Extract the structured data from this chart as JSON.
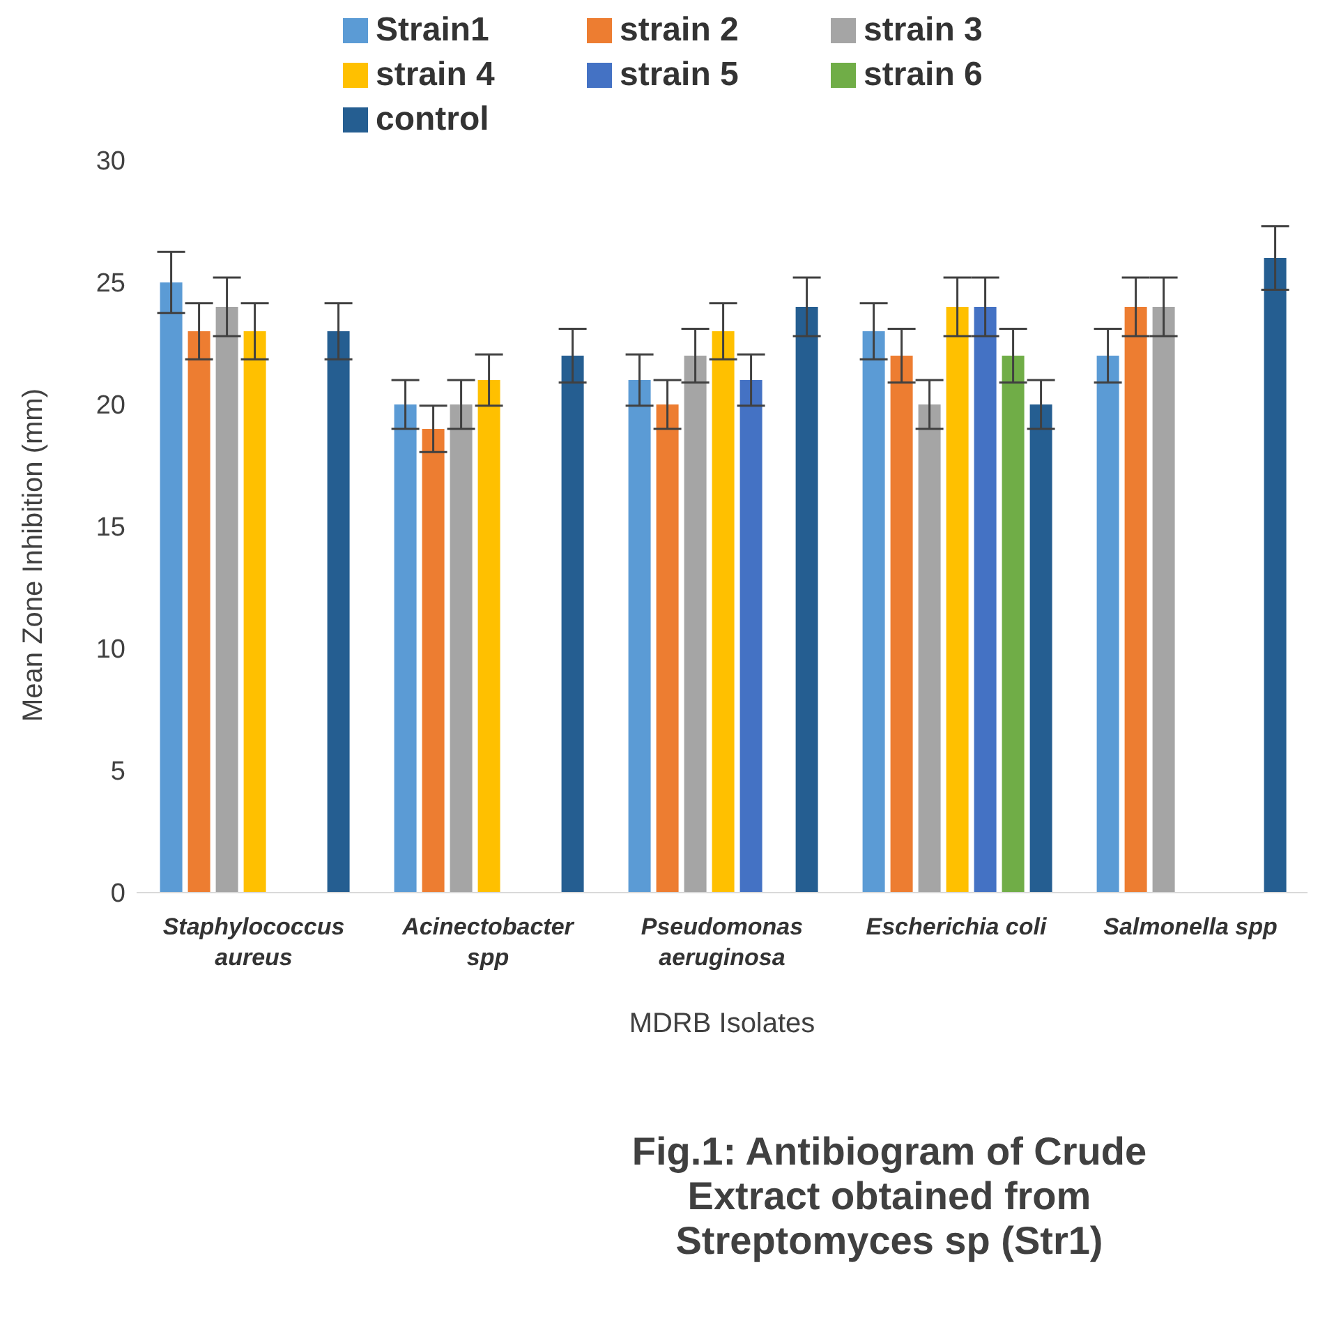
{
  "chart_data": {
    "type": "bar",
    "title": "Fig.1: Antibiogram of Crude Extract obtained from Streptomyces sp (Str1)",
    "xlabel": "MDRB Isolates",
    "ylabel": "Mean Zone Inhibition (mm)",
    "categories": [
      "Staphylococcus aureus",
      "Acinectobacter spp",
      "Pseudomonas aeruginosa",
      "Escherichia coli",
      "Salmonella spp"
    ],
    "series": [
      {
        "name": "Strain1",
        "color": "#5b9bd5",
        "values": [
          25,
          20,
          21,
          23,
          22
        ],
        "errors": [
          1.25,
          1,
          1.05,
          1.15,
          1.1
        ]
      },
      {
        "name": "strain 2",
        "color": "#ed7d31",
        "values": [
          23,
          19,
          20,
          22,
          24
        ],
        "errors": [
          1.15,
          0.95,
          1,
          1.1,
          1.2
        ]
      },
      {
        "name": "strain 3",
        "color": "#a5a5a5",
        "values": [
          24,
          20,
          22,
          20,
          24
        ],
        "errors": [
          1.2,
          1,
          1.1,
          1,
          1.2
        ]
      },
      {
        "name": "strain 4",
        "color": "#ffc000",
        "values": [
          23,
          21,
          23,
          24,
          null
        ],
        "errors": [
          1.15,
          1.05,
          1.15,
          1.2,
          null
        ]
      },
      {
        "name": "strain 5",
        "color": "#4472c4",
        "values": [
          null,
          null,
          21,
          24,
          null
        ],
        "errors": [
          null,
          null,
          1.05,
          1.2,
          null
        ]
      },
      {
        "name": "strain 6",
        "color": "#70ad47",
        "values": [
          null,
          null,
          null,
          22,
          null
        ],
        "errors": [
          null,
          null,
          null,
          1.1,
          null
        ]
      },
      {
        "name": "control",
        "color": "#255e91",
        "values": [
          23,
          22,
          24,
          20,
          26
        ],
        "errors": [
          1.15,
          1.1,
          1.2,
          1,
          1.3
        ]
      }
    ],
    "ylim": [
      0,
      30
    ],
    "yticks": [
      0,
      5,
      10,
      15,
      20,
      25,
      30
    ],
    "grid": false,
    "legend": "top"
  }
}
